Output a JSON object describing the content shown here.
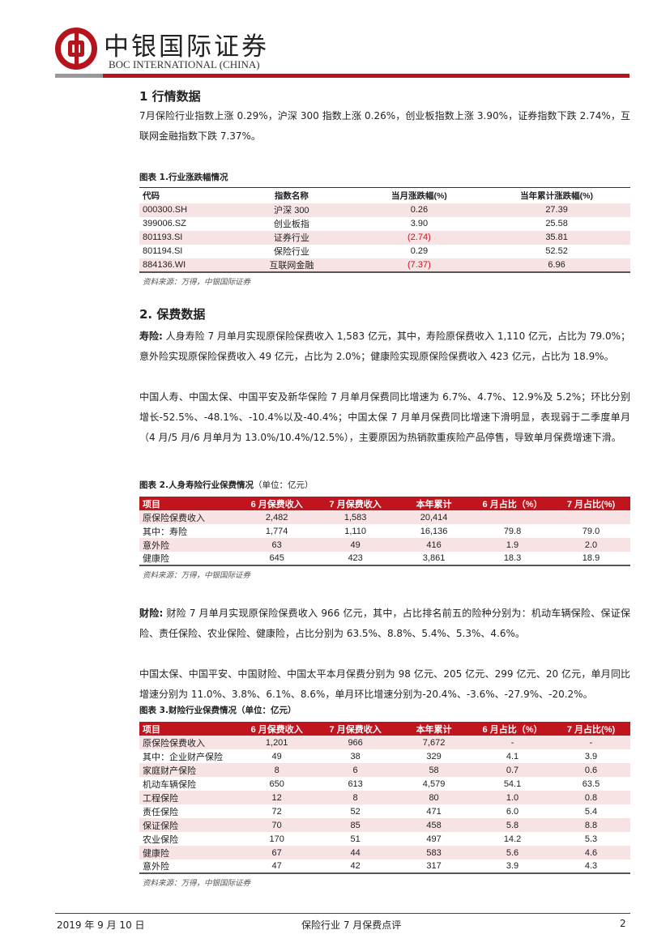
{
  "header": {
    "brand_cn": "中银国际证券",
    "brand_en": "BOC INTERNATIONAL (CHINA)",
    "brand_color": "#b5141d"
  },
  "section1": {
    "heading": "1 行情数据",
    "paragraph": "7月保险行业指数上涨 0.29%，沪深 300 指数上涨 0.26%，创业板指数上涨 3.90%，证券指数下跌 2.74%，互联网金融指数下跌 7.37%。"
  },
  "table1": {
    "title": "图表 1.行业涨跌幅情况",
    "headers": [
      "代码",
      "指数名称",
      "当月涨跌幅(%)",
      "当年累计涨跌幅(%)"
    ],
    "rows": [
      [
        "000300.SH",
        "沪深 300",
        "0.26",
        "27.39"
      ],
      [
        "399006.SZ",
        "创业板指",
        "3.90",
        "25.58"
      ],
      [
        "801193.SI",
        "证券行业",
        "(2.74)",
        "35.81"
      ],
      [
        "801194.SI",
        "保险行业",
        "0.29",
        "52.52"
      ],
      [
        "884136.WI",
        "互联网金融",
        "(7.37)",
        "6.96"
      ]
    ],
    "source": "资料来源：万得，中银国际证券"
  },
  "section2": {
    "heading": "2. 保费数据",
    "p1_label": "寿险:",
    "p1": " 人身寿险 7 月单月实现原保险保费收入 1,583 亿元，其中，寿险原保费收入 1,110 亿元，占比为 79.0%；意外险实现原保险保费收入 49 亿元，占比为 2.0%；健康险实现原保险保费收入 423 亿元，占比为 18.9%。",
    "p2": "中国人寿、中国太保、中国平安及新华保险 7 月单月保费同比增速为 6.7%、4.7%、12.9%及 5.2%；环比分别增长-52.5%、-48.1%、-10.4%以及-40.4%；中国太保 7 月单月保费同比增速下滑明显，表现弱于二季度单月（4 月/5 月/6 月单月为 13.0%/10.4%/12.5%），主要原因为热销款重疾险产品停售，导致单月保费增速下滑。",
    "p3_label": "财险:",
    "p3": " 财险 7 月单月实现原保险保费收入 966 亿元，其中，占比排名前五的险种分别为：机动车辆保险、保证保险、责任保险、农业保险、健康险，占比分别为 63.5%、8.8%、5.4%、5.3%、4.6%。",
    "p4": "中国太保、中国平安、中国财险、中国太平本月保费分别为 98 亿元、205 亿元、299 亿元、20 亿元，单月同比增速分别为 11.0%、3.8%、6.1%、8.6%，单月环比增速分别为-20.4%、-3.6%、-27.9%、-20.2%。"
  },
  "table2": {
    "title": "图表 2.人身寿险行业保费情况",
    "unit": "（单位：亿元）",
    "headers": [
      "项目",
      "6 月保费收入",
      "7 月保费收入",
      "本年累计",
      "6 月占比（%）",
      "7 月占比(%)"
    ],
    "rows": [
      [
        "原保险保费收入",
        "2,482",
        "1,583",
        "20,414",
        "",
        ""
      ],
      [
        "其中：寿险",
        "1,774",
        "1,110",
        "16,136",
        "79.8",
        "79.0"
      ],
      [
        "意外险",
        "63",
        "49",
        "416",
        "1.9",
        "2.0"
      ],
      [
        "健康险",
        "645",
        "423",
        "3,861",
        "18.3",
        "18.9"
      ]
    ],
    "source": "资料来源：万得，中银国际证券"
  },
  "table3": {
    "title": "图表 3.财险行业保费情况（单位：亿元）",
    "headers": [
      "项目",
      "6 月保费收入",
      "7 月保费收入",
      "本年累计",
      "6 月占比（%）",
      "7 月占比(%)"
    ],
    "rows": [
      [
        "原保险保费收入",
        "1,201",
        "966",
        "7,672",
        "-",
        "-"
      ],
      [
        "其中：企业财产保险",
        "49",
        "38",
        "329",
        "4.1",
        "3.9"
      ],
      [
        "家庭财产保险",
        "8",
        "6",
        "58",
        "0.7",
        "0.6"
      ],
      [
        "机动车辆保险",
        "650",
        "613",
        "4,579",
        "54.1",
        "63.5"
      ],
      [
        "工程保险",
        "12",
        "8",
        "80",
        "1.0",
        "0.8"
      ],
      [
        "责任保险",
        "72",
        "52",
        "471",
        "6.0",
        "5.4"
      ],
      [
        "保证保险",
        "70",
        "85",
        "458",
        "5.8",
        "8.8"
      ],
      [
        "农业保险",
        "170",
        "51",
        "497",
        "14.2",
        "5.3"
      ],
      [
        "健康险",
        "67",
        "44",
        "583",
        "5.6",
        "4.6"
      ],
      [
        "意外险",
        "47",
        "42",
        "317",
        "3.9",
        "4.3"
      ]
    ],
    "source": "资料来源：万得，中银国际证券"
  },
  "footer": {
    "date": "2019 年 9 月 10 日",
    "title": "保险行业 7 月保费点评",
    "page": "2"
  }
}
